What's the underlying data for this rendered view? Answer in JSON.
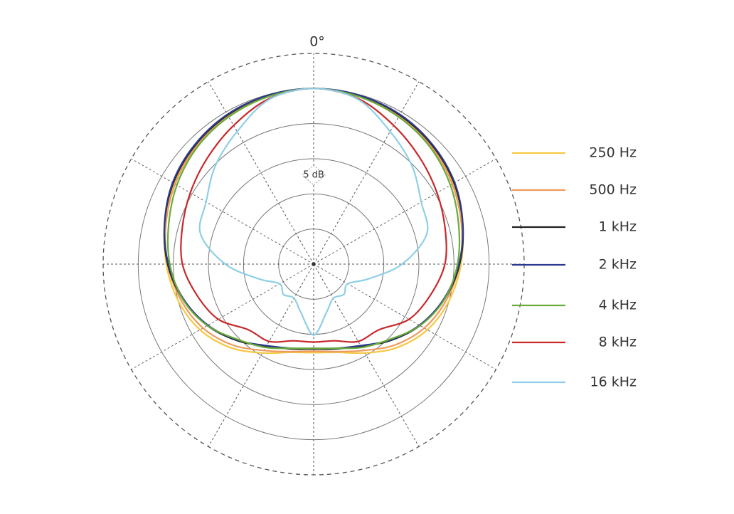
{
  "chart_data": {
    "type": "polar",
    "zero_label": "0°",
    "annotation": "5 dB",
    "theta": [
      0,
      15,
      30,
      45,
      60,
      75,
      90,
      105,
      120,
      135,
      150,
      165,
      180,
      195,
      210,
      225,
      240,
      255,
      270,
      285,
      300,
      315,
      330,
      345
    ],
    "thetaticks": [
      0,
      30,
      60,
      90,
      120,
      150,
      180,
      210,
      240,
      270,
      300,
      330
    ],
    "rlim": [
      -25,
      5
    ],
    "rticks": [
      -20,
      -15,
      -10,
      -5,
      0
    ],
    "grid": true,
    "legend": "right",
    "series": [
      {
        "name": "250 Hz",
        "color": "#f5c845",
        "values": [
          0,
          -0.2,
          -0.6,
          -1.3,
          -2.1,
          -3.1,
          -4,
          -5,
          -6.3,
          -8.2,
          -10.4,
          -12,
          -12.4,
          -12,
          -10.4,
          -8.2,
          -6.3,
          -5,
          -4,
          -3.1,
          -2.1,
          -1.3,
          -0.6,
          -0.2
        ]
      },
      {
        "name": "500 Hz",
        "color": "#ef9a5c",
        "values": [
          0,
          -0.2,
          -0.6,
          -1.3,
          -2.2,
          -3.2,
          -4.2,
          -5.4,
          -6.8,
          -8.7,
          -10.8,
          -12.1,
          -12.6,
          -12.1,
          -10.8,
          -8.7,
          -6.8,
          -5.4,
          -4.2,
          -3.2,
          -2.2,
          -1.3,
          -0.6,
          -0.2
        ]
      },
      {
        "name": "1 kHz",
        "color": "#222222",
        "values": [
          0,
          -0.1,
          -0.5,
          -1.1,
          -1.9,
          -3,
          -4.2,
          -5.7,
          -7.5,
          -9.6,
          -11.5,
          -12.5,
          -12.9,
          -12.5,
          -11.5,
          -9.6,
          -7.5,
          -5.7,
          -4.2,
          -3,
          -1.9,
          -1.1,
          -0.5,
          -0.1
        ]
      },
      {
        "name": "2 kHz",
        "color": "#2b3a8c",
        "values": [
          0,
          -0.1,
          -0.4,
          -1,
          -1.8,
          -3,
          -4.3,
          -5.8,
          -7.6,
          -9.7,
          -11.6,
          -12.6,
          -13,
          -12.6,
          -11.6,
          -9.7,
          -7.6,
          -5.8,
          -4.3,
          -3,
          -1.8,
          -1,
          -0.4,
          -0.1
        ]
      },
      {
        "name": "4 kHz",
        "color": "#6aab3a",
        "values": [
          0,
          -0.3,
          -0.8,
          -1.5,
          -2.5,
          -3.6,
          -4.5,
          -5.7,
          -7.5,
          -9.8,
          -11.3,
          -12.6,
          -13,
          -12.6,
          -11.3,
          -9.8,
          -7.5,
          -5.7,
          -4.5,
          -3.6,
          -2.5,
          -1.5,
          -0.8,
          -0.3
        ]
      },
      {
        "name": "8 kHz",
        "color": "#c8282a",
        "values": [
          0,
          -0.6,
          -2.2,
          -3.6,
          -4.7,
          -5.6,
          -6.3,
          -7.8,
          -9.3,
          -11.8,
          -12.3,
          -13.7,
          -13.9,
          -13.7,
          -12.3,
          -11.8,
          -9.3,
          -7.8,
          -6.3,
          -5.6,
          -4.7,
          -3.6,
          -2.2,
          -0.6
        ]
      },
      {
        "name": "16 kHz",
        "color": "#8ecfe6",
        "values": [
          0,
          -0.7,
          -3.2,
          -5.2,
          -7.3,
          -8.3,
          -12.4,
          -16.9,
          -19.4,
          -18.9,
          -19.4,
          -17.9,
          -14.9,
          -17.9,
          -19.4,
          -18.9,
          -19.4,
          -16.9,
          -12.4,
          -8.3,
          -7.3,
          -5.2,
          -3.2,
          -0.7
        ]
      }
    ]
  }
}
